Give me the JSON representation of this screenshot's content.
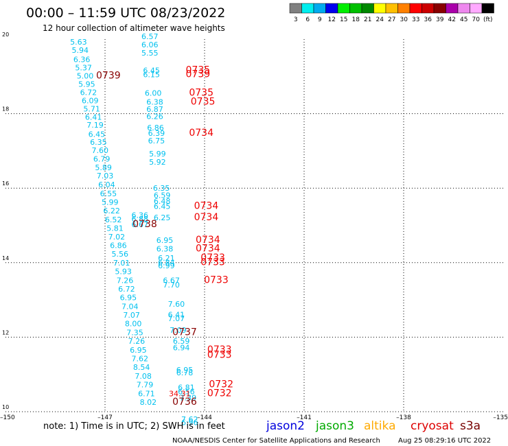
{
  "header": {
    "title": "00:00 – 11:59 UTC 08/23/2022",
    "subtitle": "12 hour collection of altimeter wave heights"
  },
  "colorbar": {
    "colors": [
      "#808080",
      "#00eeee",
      "#00aaee",
      "#0000ee",
      "#00ee00",
      "#00c000",
      "#008800",
      "#ffff00",
      "#ffc000",
      "#ff8000",
      "#ff0000",
      "#cc0000",
      "#880000",
      "#aa00aa",
      "#ee88ee",
      "#ffaaff",
      "#000000"
    ],
    "labels": [
      "3",
      "6",
      "9",
      "12",
      "15",
      "18",
      "21",
      "24",
      "27",
      "30",
      "33",
      "36",
      "39",
      "42",
      "45",
      "70",
      "(ft)"
    ]
  },
  "footer": {
    "note": "note: 1) Time is in UTC; 2) SWH is in feet",
    "credit": "NOAA/NESDIS Center for Satellite Applications and Research",
    "timestamp": "Aug 25 08:29:16 UTC 2022"
  },
  "legend": [
    {
      "name": "jason2",
      "color": "#0000dd"
    },
    {
      "name": "jason3",
      "color": "#00aa00"
    },
    {
      "name": "altika",
      "color": "#ffaa00"
    },
    {
      "name": "cryosat",
      "color": "#dd0000"
    },
    {
      "name": "s3a",
      "color": "#770000"
    }
  ],
  "chart_data": {
    "type": "scatter",
    "xlim": [
      -150,
      -135
    ],
    "ylim": [
      10,
      20
    ],
    "x_ticks": [
      -150,
      -147,
      -144,
      -141,
      -138,
      -135
    ],
    "x_tick_labels": [
      "–150",
      "–147",
      "–144",
      "–141",
      "–138",
      "–135"
    ],
    "y_ticks": [
      10,
      12,
      14,
      16,
      18,
      20
    ],
    "y_tick_labels": [
      "10",
      "12",
      "14",
      "16",
      "18",
      "20"
    ],
    "grid": true,
    "colors": {
      "swh": "#00c0ee",
      "time_red": "#ee0000",
      "time_dark": "#880000"
    },
    "swh_values": [
      {
        "lon": -147.8,
        "lat": 19.85,
        "v": "5.63"
      },
      {
        "lon": -147.75,
        "lat": 19.63,
        "v": "5.94"
      },
      {
        "lon": -147.7,
        "lat": 19.38,
        "v": "6.36"
      },
      {
        "lon": -147.65,
        "lat": 19.16,
        "v": "5.37"
      },
      {
        "lon": -147.6,
        "lat": 18.94,
        "v": "5.00"
      },
      {
        "lon": -147.55,
        "lat": 18.72,
        "v": "5.95"
      },
      {
        "lon": -147.5,
        "lat": 18.5,
        "v": "6.72"
      },
      {
        "lon": -147.45,
        "lat": 18.28,
        "v": "6.09"
      },
      {
        "lon": -147.4,
        "lat": 18.06,
        "v": "5.71"
      },
      {
        "lon": -147.35,
        "lat": 17.84,
        "v": "6.41"
      },
      {
        "lon": -147.3,
        "lat": 17.62,
        "v": "7.19"
      },
      {
        "lon": -147.25,
        "lat": 17.38,
        "v": "6.45"
      },
      {
        "lon": -147.2,
        "lat": 17.16,
        "v": "6.35"
      },
      {
        "lon": -147.15,
        "lat": 16.94,
        "v": "7.60"
      },
      {
        "lon": -147.1,
        "lat": 16.71,
        "v": "6.79"
      },
      {
        "lon": -147.05,
        "lat": 16.48,
        "v": "5.89"
      },
      {
        "lon": -147.0,
        "lat": 16.26,
        "v": "7.03"
      },
      {
        "lon": -146.95,
        "lat": 16.02,
        "v": "6.04"
      },
      {
        "lon": -146.9,
        "lat": 15.78,
        "v": "6.55"
      },
      {
        "lon": -146.85,
        "lat": 15.55,
        "v": "5.99"
      },
      {
        "lon": -146.8,
        "lat": 15.32,
        "v": "6.22"
      },
      {
        "lon": -146.75,
        "lat": 15.08,
        "v": "6.52"
      },
      {
        "lon": -146.7,
        "lat": 14.85,
        "v": "5.81"
      },
      {
        "lon": -146.65,
        "lat": 14.62,
        "v": "7.02"
      },
      {
        "lon": -146.6,
        "lat": 14.39,
        "v": "6.86"
      },
      {
        "lon": -146.55,
        "lat": 14.16,
        "v": "5.56"
      },
      {
        "lon": -146.5,
        "lat": 13.92,
        "v": "7.01"
      },
      {
        "lon": -146.45,
        "lat": 13.69,
        "v": "5.93"
      },
      {
        "lon": -146.4,
        "lat": 13.45,
        "v": "7.26"
      },
      {
        "lon": -146.35,
        "lat": 13.22,
        "v": "6.72"
      },
      {
        "lon": -146.3,
        "lat": 12.99,
        "v": "6.95"
      },
      {
        "lon": -146.25,
        "lat": 12.75,
        "v": "7.04"
      },
      {
        "lon": -146.2,
        "lat": 12.52,
        "v": "7.07"
      },
      {
        "lon": -146.15,
        "lat": 12.29,
        "v": "8.00"
      },
      {
        "lon": -146.1,
        "lat": 12.05,
        "v": "7.35"
      },
      {
        "lon": -146.05,
        "lat": 11.82,
        "v": "7.26"
      },
      {
        "lon": -146.0,
        "lat": 11.58,
        "v": "6.95"
      },
      {
        "lon": -145.95,
        "lat": 11.35,
        "v": "7.62"
      },
      {
        "lon": -145.9,
        "lat": 11.12,
        "v": "8.54"
      },
      {
        "lon": -145.85,
        "lat": 10.88,
        "v": "7.08"
      },
      {
        "lon": -145.8,
        "lat": 10.65,
        "v": "7.79"
      },
      {
        "lon": -145.75,
        "lat": 10.41,
        "v": "6.71"
      },
      {
        "lon": -145.7,
        "lat": 10.18,
        "v": "8.02"
      },
      {
        "lon": -145.65,
        "lat": 20.0,
        "v": "6.57"
      },
      {
        "lon": -145.65,
        "lat": 19.78,
        "v": "6.06"
      },
      {
        "lon": -145.65,
        "lat": 19.56,
        "v": "5.55"
      },
      {
        "lon": -145.6,
        "lat": 19.09,
        "v": "6.45"
      },
      {
        "lon": -145.6,
        "lat": 18.98,
        "v": "6.15"
      },
      {
        "lon": -145.55,
        "lat": 18.48,
        "v": "6.00"
      },
      {
        "lon": -145.5,
        "lat": 18.24,
        "v": "6.38"
      },
      {
        "lon": -145.5,
        "lat": 18.05,
        "v": "6.87"
      },
      {
        "lon": -145.5,
        "lat": 17.85,
        "v": "6.26"
      },
      {
        "lon": -145.48,
        "lat": 17.55,
        "v": "6.86"
      },
      {
        "lon": -145.45,
        "lat": 17.4,
        "v": "6.39"
      },
      {
        "lon": -145.45,
        "lat": 17.2,
        "v": "6.75"
      },
      {
        "lon": -145.42,
        "lat": 16.85,
        "v": "5.99"
      },
      {
        "lon": -145.42,
        "lat": 16.63,
        "v": "5.92"
      },
      {
        "lon": -145.3,
        "lat": 15.93,
        "v": "6.35"
      },
      {
        "lon": -145.28,
        "lat": 15.74,
        "v": "6.59"
      },
      {
        "lon": -145.28,
        "lat": 15.58,
        "v": "6.48"
      },
      {
        "lon": -145.28,
        "lat": 15.44,
        "v": "6.45"
      },
      {
        "lon": -145.28,
        "lat": 15.14,
        "v": "6.25"
      },
      {
        "lon": -145.95,
        "lat": 15.2,
        "v": "6.36"
      },
      {
        "lon": -145.95,
        "lat": 15.1,
        "v": "6.88"
      },
      {
        "lon": -145.95,
        "lat": 14.95,
        "v": "6.67"
      },
      {
        "lon": -145.2,
        "lat": 14.53,
        "v": "6.95"
      },
      {
        "lon": -145.2,
        "lat": 14.3,
        "v": "6.38"
      },
      {
        "lon": -145.15,
        "lat": 14.05,
        "v": "6.21"
      },
      {
        "lon": -145.15,
        "lat": 13.93,
        "v": "6.84"
      },
      {
        "lon": -145.15,
        "lat": 13.85,
        "v": "6.99"
      },
      {
        "lon": -145.0,
        "lat": 13.45,
        "v": "6.67"
      },
      {
        "lon": -145.0,
        "lat": 13.33,
        "v": "7.70"
      },
      {
        "lon": -144.85,
        "lat": 12.82,
        "v": "7.60"
      },
      {
        "lon": -144.85,
        "lat": 12.53,
        "v": "6.41"
      },
      {
        "lon": -144.85,
        "lat": 12.43,
        "v": "7.07"
      },
      {
        "lon": -144.8,
        "lat": 12.12,
        "v": "7.09"
      },
      {
        "lon": -144.7,
        "lat": 11.82,
        "v": "6.59"
      },
      {
        "lon": -144.7,
        "lat": 11.65,
        "v": "6.94"
      },
      {
        "lon": -144.6,
        "lat": 11.05,
        "v": "6.95"
      },
      {
        "lon": -144.6,
        "lat": 10.98,
        "v": "6.78"
      },
      {
        "lon": -144.55,
        "lat": 10.58,
        "v": "6.81"
      },
      {
        "lon": -144.55,
        "lat": 10.47,
        "v": "6.56"
      },
      {
        "lon": -144.5,
        "lat": 10.3,
        "v": "7.39"
      },
      {
        "lon": -144.45,
        "lat": 9.72,
        "v": "7.62"
      },
      {
        "lon": -144.45,
        "lat": 9.64,
        "v": "6.96"
      }
    ],
    "time_labels": [
      {
        "lon": -146.9,
        "lat": 18.94,
        "v": "0739",
        "c": "dark"
      },
      {
        "lon": -144.2,
        "lat": 19.09,
        "v": "0735",
        "c": "red"
      },
      {
        "lon": -144.2,
        "lat": 18.98,
        "v": "0739",
        "c": "red"
      },
      {
        "lon": -144.1,
        "lat": 18.48,
        "v": "0735",
        "c": "red"
      },
      {
        "lon": -144.05,
        "lat": 18.24,
        "v": "0735",
        "c": "red"
      },
      {
        "lon": -144.1,
        "lat": 17.4,
        "v": "0734",
        "c": "red"
      },
      {
        "lon": -143.95,
        "lat": 15.44,
        "v": "0734",
        "c": "red"
      },
      {
        "lon": -143.95,
        "lat": 15.14,
        "v": "0734",
        "c": "red"
      },
      {
        "lon": -145.8,
        "lat": 14.95,
        "v": "0738",
        "c": "dark"
      },
      {
        "lon": -143.9,
        "lat": 14.53,
        "v": "0734",
        "c": "red"
      },
      {
        "lon": -143.9,
        "lat": 14.3,
        "v": "0734",
        "c": "red"
      },
      {
        "lon": -143.75,
        "lat": 14.05,
        "v": "0733",
        "c": "red"
      },
      {
        "lon": -143.75,
        "lat": 13.93,
        "v": "0733",
        "c": "red"
      },
      {
        "lon": -143.65,
        "lat": 13.45,
        "v": "0733",
        "c": "red"
      },
      {
        "lon": -144.6,
        "lat": 12.05,
        "v": "0737",
        "c": "dark"
      },
      {
        "lon": -143.55,
        "lat": 11.58,
        "v": "0733",
        "c": "red"
      },
      {
        "lon": -143.55,
        "lat": 11.45,
        "v": "0733",
        "c": "red"
      },
      {
        "lon": -143.5,
        "lat": 10.65,
        "v": "0732",
        "c": "red"
      },
      {
        "lon": -143.55,
        "lat": 10.41,
        "v": "0732",
        "c": "red"
      },
      {
        "lon": -144.6,
        "lat": 10.18,
        "v": "0736",
        "c": "dark"
      }
    ],
    "red_swh": [
      {
        "lon": -144.75,
        "lat": 10.41,
        "v": "34.31"
      }
    ]
  }
}
